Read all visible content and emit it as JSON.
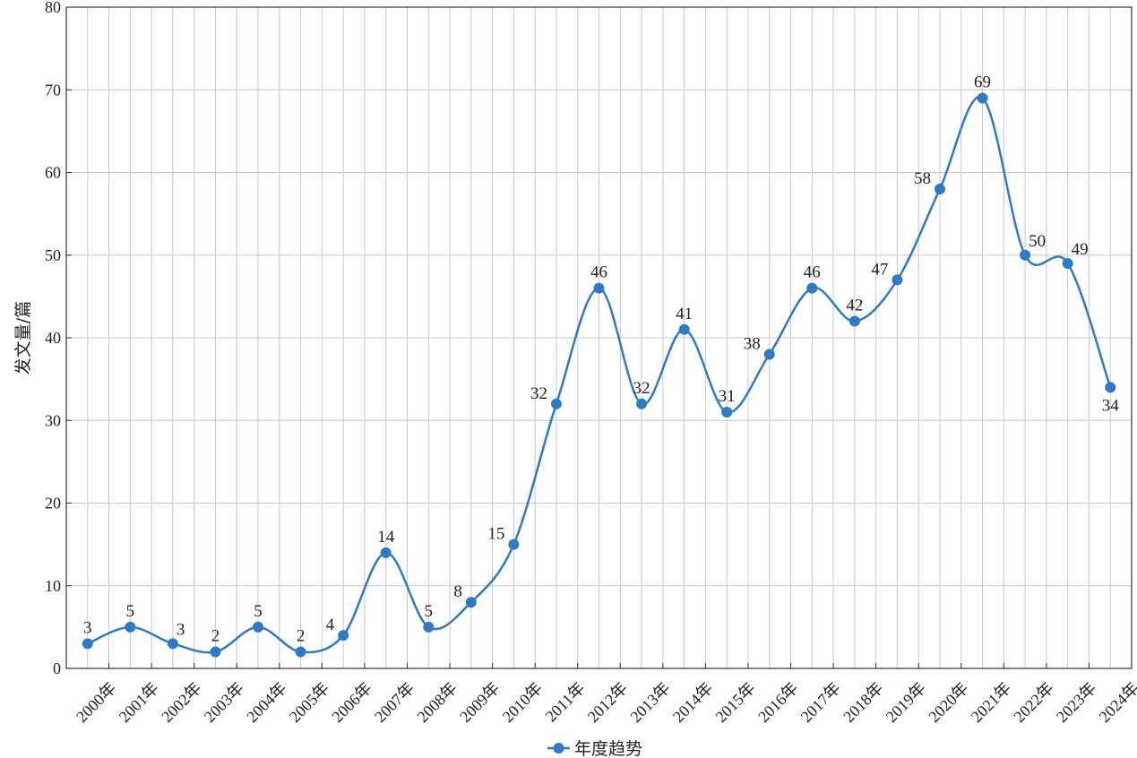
{
  "chart_data": {
    "type": "line",
    "title": "",
    "xlabel": "",
    "ylabel": "发文量/篇",
    "ylim": [
      0,
      80
    ],
    "y_ticks": [
      0,
      10,
      20,
      30,
      40,
      50,
      60,
      70,
      80
    ],
    "categories": [
      "2000年",
      "2001年",
      "2002年",
      "2003年",
      "2004年",
      "2005年",
      "2006年",
      "2007年",
      "2008年",
      "2009年",
      "2010年",
      "2011年",
      "2012年",
      "2013年",
      "2014年",
      "2015年",
      "2016年",
      "2017年",
      "2018年",
      "2019年",
      "2020年",
      "2021年",
      "2022年",
      "2023年",
      "2024年"
    ],
    "series": [
      {
        "name": "年度趋势",
        "values": [
          3,
          5,
          3,
          2,
          5,
          2,
          4,
          14,
          5,
          8,
          15,
          32,
          46,
          32,
          41,
          31,
          38,
          46,
          42,
          47,
          58,
          69,
          50,
          49,
          34
        ],
        "color": "#2f7ac6",
        "smooth": true,
        "marker": "circle",
        "data_labels": true
      }
    ],
    "grid": true,
    "legend": "bottom-center"
  }
}
